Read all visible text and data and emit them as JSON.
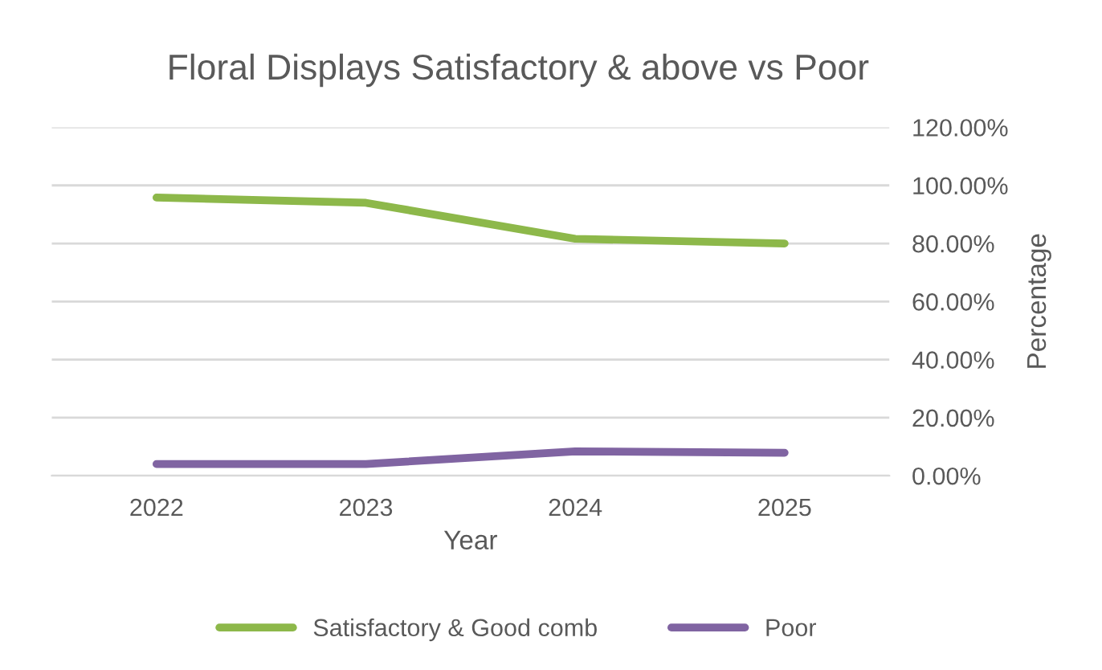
{
  "chart_data": {
    "type": "line",
    "title": "Floral Displays Satisfactory & above vs Poor",
    "xlabel": "Year",
    "ylabel": "Percentage",
    "categories": [
      "2022",
      "2023",
      "2024",
      "2025"
    ],
    "series": [
      {
        "name": "Satisfactory & Good comb",
        "color": "#8db84a",
        "values": [
          95.8,
          94,
          81.6,
          80
        ]
      },
      {
        "name": "Poor",
        "color": "#8064a2",
        "values": [
          4,
          4,
          8.4,
          7.9
        ]
      }
    ],
    "ylim": [
      0,
      120
    ],
    "yticks": [
      {
        "value": 0,
        "label": "0.00%"
      },
      {
        "value": 20,
        "label": "20.00%"
      },
      {
        "value": 40,
        "label": "40.00%"
      },
      {
        "value": 60,
        "label": "60.00%"
      },
      {
        "value": 80,
        "label": "80.00%"
      },
      {
        "value": 100,
        "label": "100.00%"
      },
      {
        "value": 120,
        "label": "120.00%"
      }
    ],
    "grid": "y",
    "legend": "bottom",
    "marker": "none",
    "line_style": "solid"
  }
}
